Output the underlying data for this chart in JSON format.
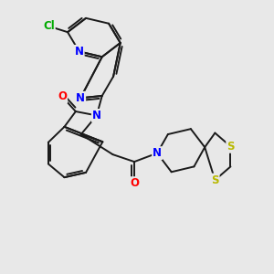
{
  "bg_color": "#e8e8e8",
  "bond_color": "#1a1a1a",
  "atom_colors": {
    "N": "#0000ff",
    "O": "#ff0000",
    "S": "#b8b800",
    "Cl": "#00aa00"
  },
  "figsize": [
    3.0,
    3.0
  ],
  "dpi": 100,
  "lw": 1.4,
  "fs": 8.5
}
